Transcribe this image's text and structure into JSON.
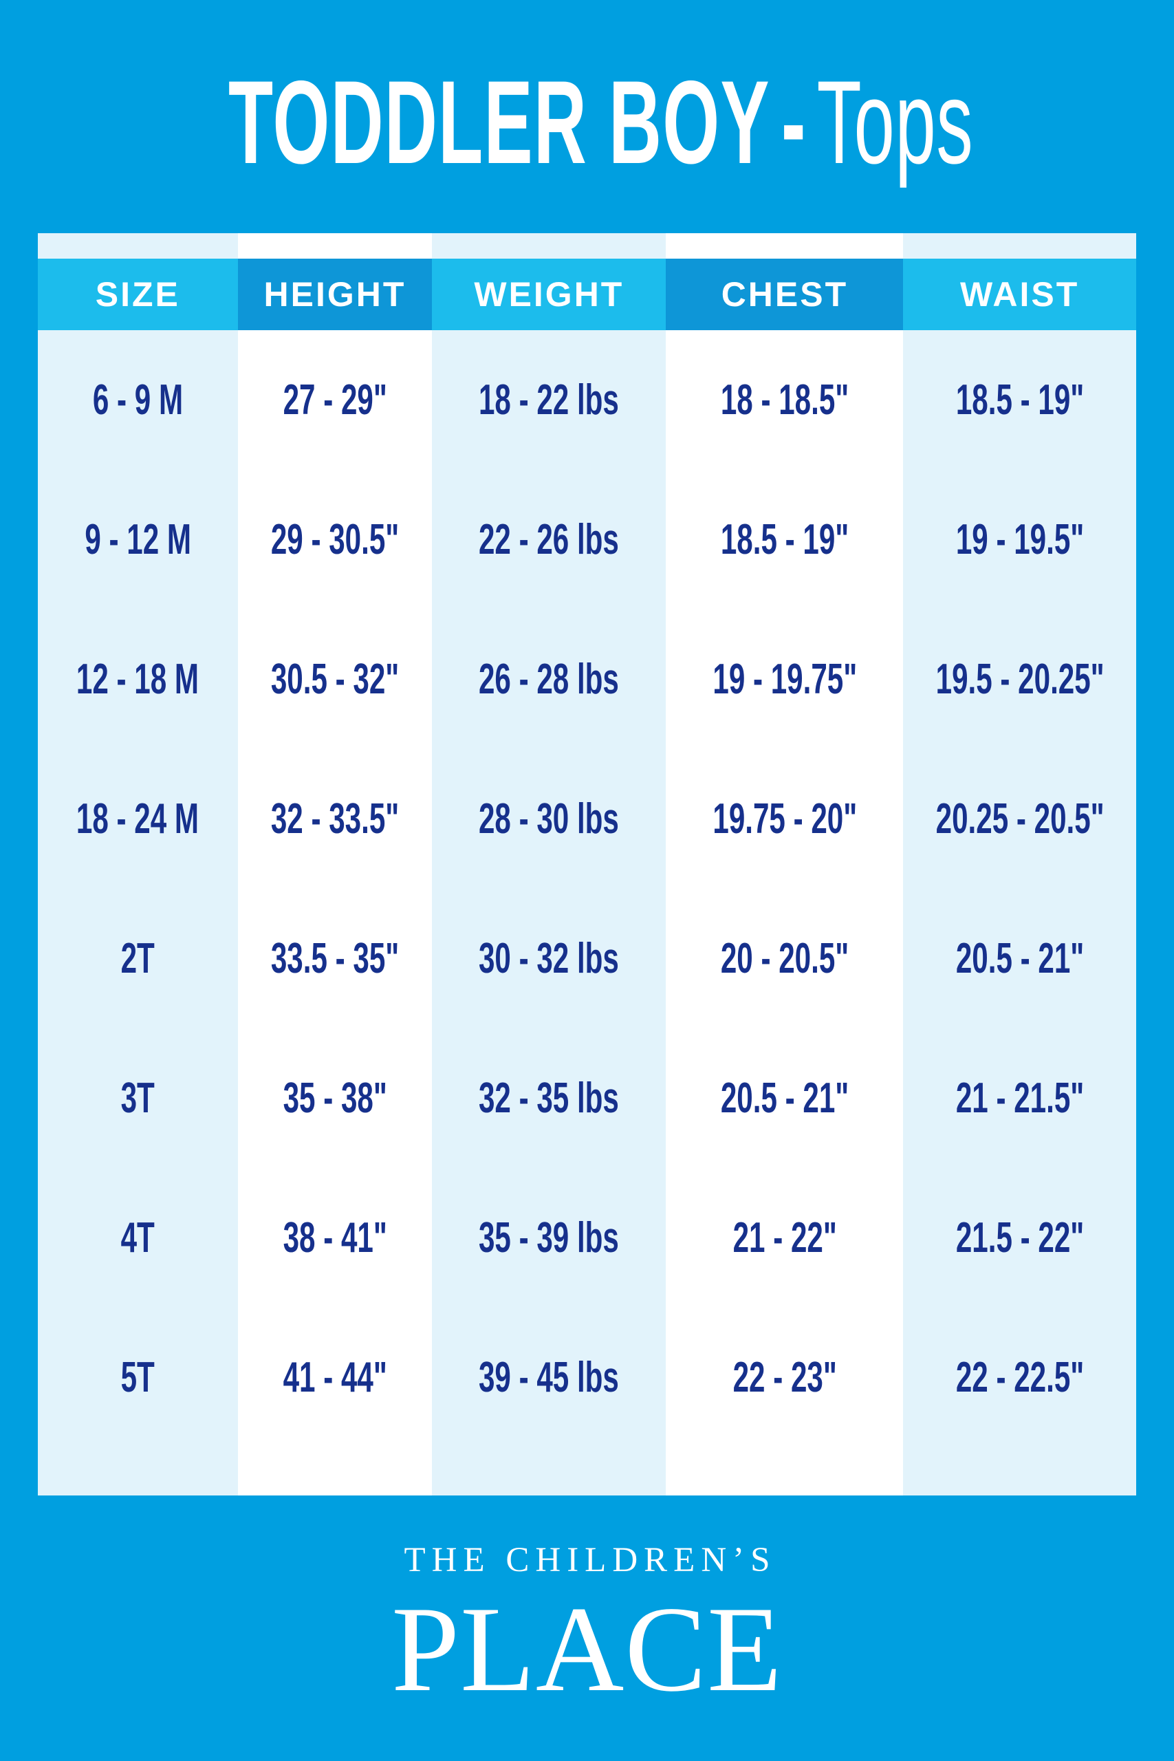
{
  "title": {
    "heavy": "TODDLER BOY",
    "dash": "-",
    "light": "Tops"
  },
  "table": {
    "columns": [
      "SIZE",
      "HEIGHT",
      "WEIGHT",
      "CHEST",
      "WAIST"
    ],
    "rows": [
      [
        "6 - 9 M",
        "27 - 29\"",
        "18 - 22 lbs",
        "18 - 18.5\"",
        "18.5 - 19\""
      ],
      [
        "9 - 12 M",
        "29 - 30.5\"",
        "22 - 26 lbs",
        "18.5 - 19\"",
        "19 - 19.5\""
      ],
      [
        "12  - 18 M",
        "30.5 - 32\"",
        "26 - 28 lbs",
        "19 - 19.75\"",
        "19.5 - 20.25\""
      ],
      [
        "18 - 24 M",
        "32 - 33.5\"",
        "28 - 30 lbs",
        "19.75 - 20\"",
        "20.25 - 20.5\""
      ],
      [
        "2T",
        "33.5 - 35\"",
        "30 - 32 lbs",
        "20 - 20.5\"",
        "20.5 - 21\""
      ],
      [
        "3T",
        "35 - 38\"",
        "32 - 35 lbs",
        "20.5 - 21\"",
        "21 - 21.5\""
      ],
      [
        "4T",
        "38 - 41\"",
        "35 - 39 lbs",
        "21 - 22\"",
        "21.5 - 22\""
      ],
      [
        "5T",
        "41 - 44\"",
        "39 - 45 lbs",
        "22 - 23\"",
        "22 - 22.5\""
      ]
    ]
  },
  "footer": {
    "line1": "THE CHILDREN’S",
    "line2": "PLACE"
  },
  "colors": {
    "background": "#009FE0",
    "header_light": "#1CBCEC",
    "header_dark": "#0E96D7",
    "column_pale": "#E2F3FB",
    "column_white": "#FFFFFF",
    "text_navy": "#16308C",
    "text_white": "#FFFFFF"
  }
}
